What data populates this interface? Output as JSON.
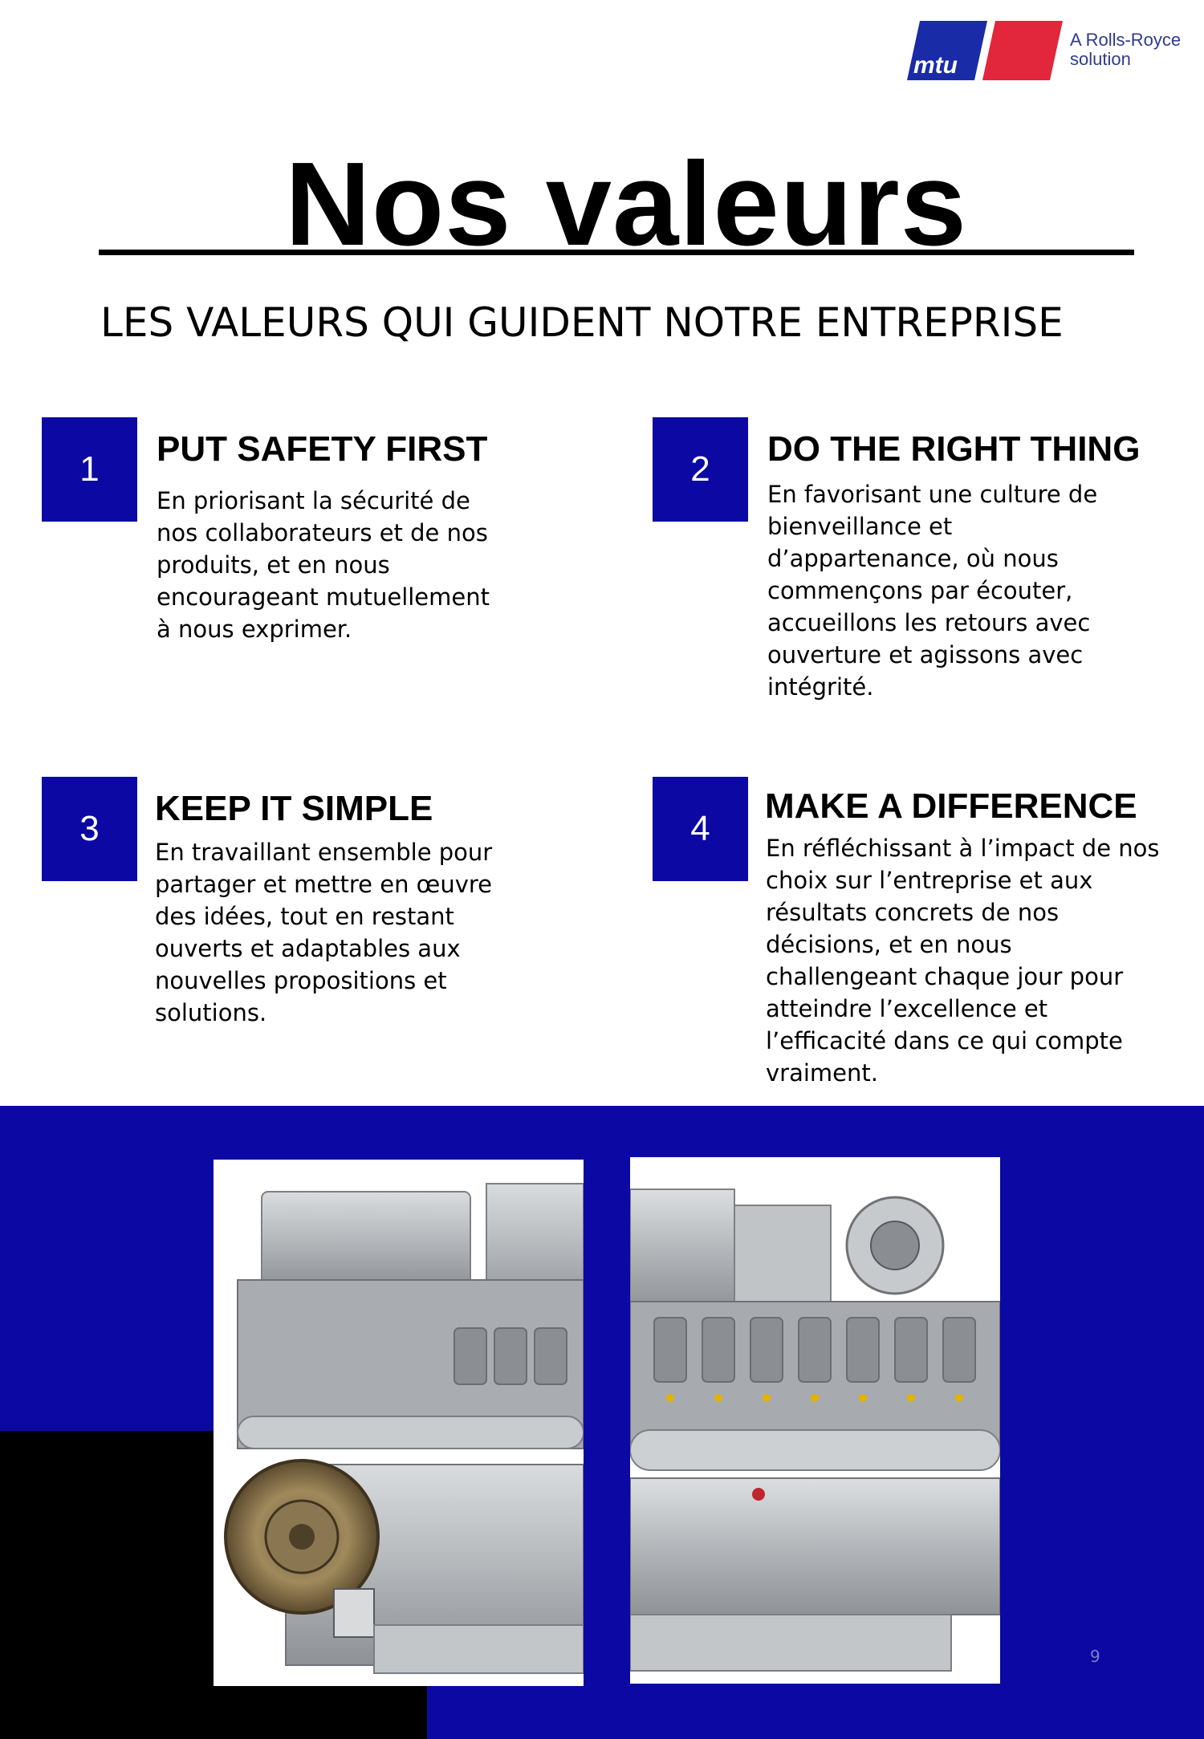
{
  "brand": {
    "logo_text": "mtu",
    "tagline_line1": "A Rolls-Royce",
    "tagline_line2": "solution",
    "colors": {
      "blue": "#1a2ba8",
      "red": "#e2263b"
    }
  },
  "page": {
    "title": "Nos valeurs",
    "subtitle": "LES VALEURS QUI GUIDENT NOTRE ENTREPRISE",
    "page_number": "9"
  },
  "values": [
    {
      "number": "1",
      "title": "PUT SAFETY FIRST",
      "text": "En priorisant la sécurité de\nnos collaborateurs et de nos\nproduits, et en nous\nencourageant mutuellement\nà nous exprimer."
    },
    {
      "number": "2",
      "title": "DO THE RIGHT THING",
      "text": "En favorisant une culture de\nbienveillance et\nd’appartenance, où nous\ncommençons par écouter,\naccueillons les retours avec\nouverture et agissons avec\nintégrité."
    },
    {
      "number": "3",
      "title": "KEEP IT SIMPLE",
      "text": "En travaillant ensemble pour\npartager et mettre en œuvre\ndes idées, tout en restant\nouverts et adaptables aux\nnouvelles propositions et\nsolutions."
    },
    {
      "number": "4",
      "title": "MAKE A DIFFERENCE",
      "text": "En réfléchissant à l’impact de nos\nchoix sur l’entreprise et aux\nrésultats concrets de nos\ndécisions, et en nous\nchallengeant chaque jour pour\natteindre l’excellence et\nl’efficacité dans ce qui compte\nvraiment."
    }
  ],
  "theme": {
    "accent_blue": "#0b08a3",
    "black": "#000000"
  },
  "images": [
    {
      "name": "engine-photo-left",
      "icon": "engine-image"
    },
    {
      "name": "engine-photo-right",
      "icon": "engine-image"
    }
  ]
}
